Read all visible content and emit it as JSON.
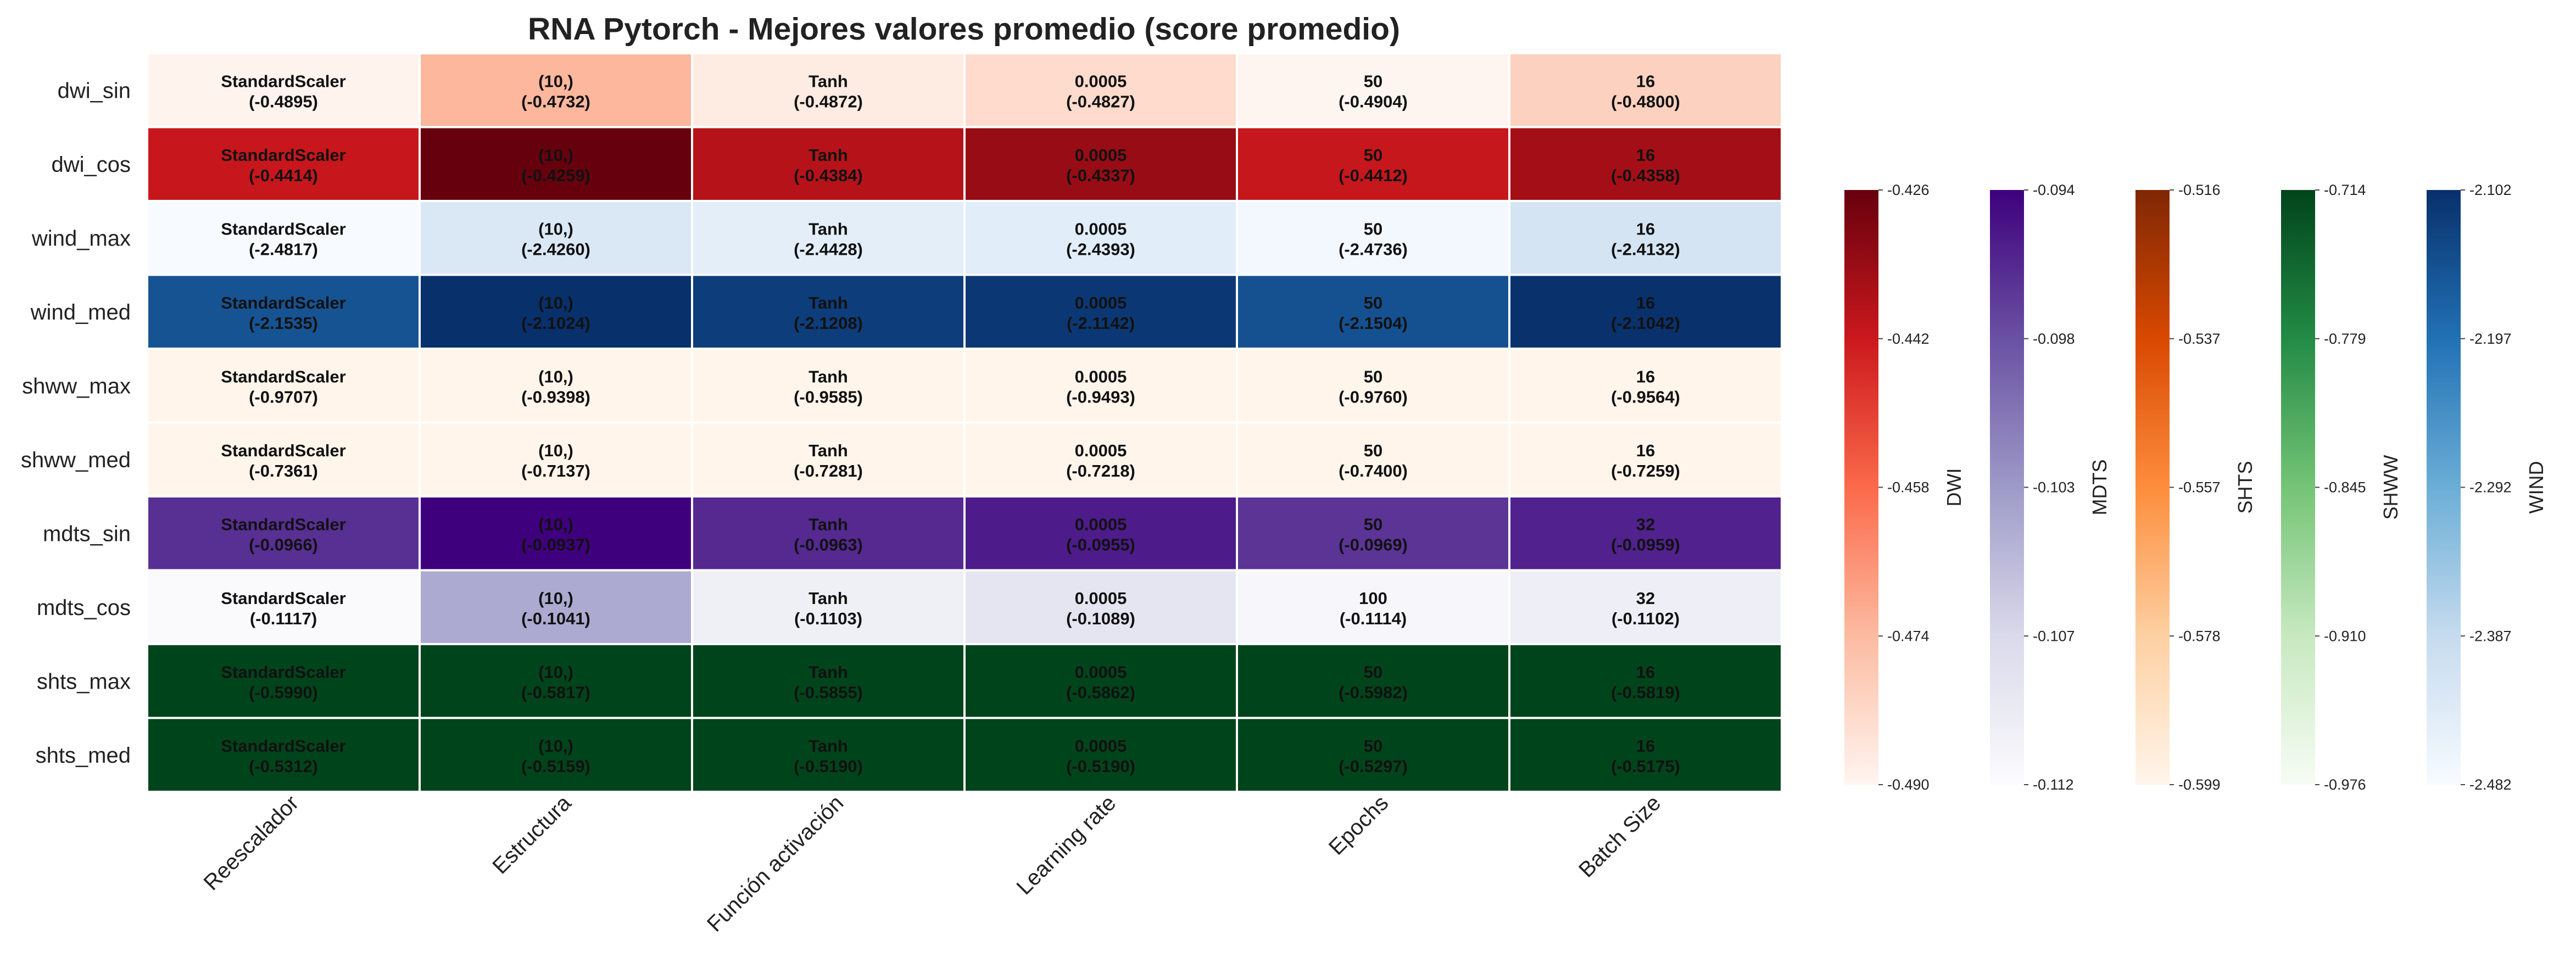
{
  "chart_data": {
    "type": "heatmap",
    "title": "RNA Pytorch - Mejores valores promedio (score promedio)",
    "columns": [
      "Reescalador",
      "Estructura",
      "Función activación",
      "Learning rate",
      "Epochs",
      "Batch Size"
    ],
    "rows": [
      {
        "label": "dwi_sin",
        "group": "DWI",
        "cells": [
          {
            "value": "StandardScaler",
            "score": "(-0.4895)",
            "s": -0.4895
          },
          {
            "value": "(10,)",
            "score": "(-0.4732)",
            "s": -0.4732
          },
          {
            "value": "Tanh",
            "score": "(-0.4872)",
            "s": -0.4872
          },
          {
            "value": "0.0005",
            "score": "(-0.4827)",
            "s": -0.4827
          },
          {
            "value": "50",
            "score": "(-0.4904)",
            "s": -0.4904
          },
          {
            "value": "16",
            "score": "(-0.4800)",
            "s": -0.48
          }
        ]
      },
      {
        "label": "dwi_cos",
        "group": "DWI",
        "cells": [
          {
            "value": "StandardScaler",
            "score": "(-0.4414)",
            "s": -0.4414
          },
          {
            "value": "(10,)",
            "score": "(-0.4259)",
            "s": -0.4259
          },
          {
            "value": "Tanh",
            "score": "(-0.4384)",
            "s": -0.4384
          },
          {
            "value": "0.0005",
            "score": "(-0.4337)",
            "s": -0.4337
          },
          {
            "value": "50",
            "score": "(-0.4412)",
            "s": -0.4412
          },
          {
            "value": "16",
            "score": "(-0.4358)",
            "s": -0.4358
          }
        ]
      },
      {
        "label": "wind_max",
        "group": "WIND",
        "cells": [
          {
            "value": "StandardScaler",
            "score": "(-2.4817)",
            "s": -2.4817
          },
          {
            "value": "(10,)",
            "score": "(-2.4260)",
            "s": -2.426
          },
          {
            "value": "Tanh",
            "score": "(-2.4428)",
            "s": -2.4428
          },
          {
            "value": "0.0005",
            "score": "(-2.4393)",
            "s": -2.4393
          },
          {
            "value": "50",
            "score": "(-2.4736)",
            "s": -2.4736
          },
          {
            "value": "16",
            "score": "(-2.4132)",
            "s": -2.4132
          }
        ]
      },
      {
        "label": "wind_med",
        "group": "WIND",
        "cells": [
          {
            "value": "StandardScaler",
            "score": "(-2.1535)",
            "s": -2.1535
          },
          {
            "value": "(10,)",
            "score": "(-2.1024)",
            "s": -2.1024
          },
          {
            "value": "Tanh",
            "score": "(-2.1208)",
            "s": -2.1208
          },
          {
            "value": "0.0005",
            "score": "(-2.1142)",
            "s": -2.1142
          },
          {
            "value": "50",
            "score": "(-2.1504)",
            "s": -2.1504
          },
          {
            "value": "16",
            "score": "(-2.1042)",
            "s": -2.1042
          }
        ]
      },
      {
        "label": "shww_max",
        "group": "SHTS",
        "cells": [
          {
            "value": "StandardScaler",
            "score": "(-0.9707)",
            "s": -0.9707
          },
          {
            "value": "(10,)",
            "score": "(-0.9398)",
            "s": -0.9398
          },
          {
            "value": "Tanh",
            "score": "(-0.9585)",
            "s": -0.9585
          },
          {
            "value": "0.0005",
            "score": "(-0.9493)",
            "s": -0.9493
          },
          {
            "value": "50",
            "score": "(-0.9760)",
            "s": -0.976
          },
          {
            "value": "16",
            "score": "(-0.9564)",
            "s": -0.9564
          }
        ]
      },
      {
        "label": "shww_med",
        "group": "SHTS",
        "cells": [
          {
            "value": "StandardScaler",
            "score": "(-0.7361)",
            "s": -0.7361
          },
          {
            "value": "(10,)",
            "score": "(-0.7137)",
            "s": -0.7137
          },
          {
            "value": "Tanh",
            "score": "(-0.7281)",
            "s": -0.7281
          },
          {
            "value": "0.0005",
            "score": "(-0.7218)",
            "s": -0.7218
          },
          {
            "value": "50",
            "score": "(-0.7400)",
            "s": -0.74
          },
          {
            "value": "16",
            "score": "(-0.7259)",
            "s": -0.7259
          }
        ]
      },
      {
        "label": "mdts_sin",
        "group": "MDTS",
        "cells": [
          {
            "value": "StandardScaler",
            "score": "(-0.0966)",
            "s": -0.0966
          },
          {
            "value": "(10,)",
            "score": "(-0.0937)",
            "s": -0.0937
          },
          {
            "value": "Tanh",
            "score": "(-0.0963)",
            "s": -0.0963
          },
          {
            "value": "0.0005",
            "score": "(-0.0955)",
            "s": -0.0955
          },
          {
            "value": "50",
            "score": "(-0.0969)",
            "s": -0.0969
          },
          {
            "value": "32",
            "score": "(-0.0959)",
            "s": -0.0959
          }
        ]
      },
      {
        "label": "mdts_cos",
        "group": "MDTS",
        "cells": [
          {
            "value": "StandardScaler",
            "score": "(-0.1117)",
            "s": -0.1117
          },
          {
            "value": "(10,)",
            "score": "(-0.1041)",
            "s": -0.1041
          },
          {
            "value": "Tanh",
            "score": "(-0.1103)",
            "s": -0.1103
          },
          {
            "value": "0.0005",
            "score": "(-0.1089)",
            "s": -0.1089
          },
          {
            "value": "100",
            "score": "(-0.1114)",
            "s": -0.1114
          },
          {
            "value": "32",
            "score": "(-0.1102)",
            "s": -0.1102
          }
        ]
      },
      {
        "label": "shts_max",
        "group": "SHWW",
        "cells": [
          {
            "value": "StandardScaler",
            "score": "(-0.5990)",
            "s": -0.599
          },
          {
            "value": "(10,)",
            "score": "(-0.5817)",
            "s": -0.5817
          },
          {
            "value": "Tanh",
            "score": "(-0.5855)",
            "s": -0.5855
          },
          {
            "value": "0.0005",
            "score": "(-0.5862)",
            "s": -0.5862
          },
          {
            "value": "50",
            "score": "(-0.5982)",
            "s": -0.5982
          },
          {
            "value": "16",
            "score": "(-0.5819)",
            "s": -0.5819
          }
        ]
      },
      {
        "label": "shts_med",
        "group": "SHWW",
        "cells": [
          {
            "value": "StandardScaler",
            "score": "(-0.5312)",
            "s": -0.5312
          },
          {
            "value": "(10,)",
            "score": "(-0.5159)",
            "s": -0.5159
          },
          {
            "value": "Tanh",
            "score": "(-0.5190)",
            "s": -0.519
          },
          {
            "value": "0.0005",
            "score": "(-0.5190)",
            "s": -0.519
          },
          {
            "value": "50",
            "score": "(-0.5297)",
            "s": -0.5297
          },
          {
            "value": "16",
            "score": "(-0.5175)",
            "s": -0.5175
          }
        ]
      }
    ],
    "colorbars": [
      {
        "label": "DWI",
        "min": -0.49,
        "max": -0.426,
        "ticks": [
          "-0.426",
          "-0.442",
          "-0.458",
          "-0.474",
          "-0.490"
        ],
        "stops": [
          "#fff5f0",
          "#fcbba1",
          "#fb6a4a",
          "#cb181d",
          "#67000d"
        ]
      },
      {
        "label": "MDTS",
        "min": -0.112,
        "max": -0.094,
        "ticks": [
          "-0.094",
          "-0.098",
          "-0.103",
          "-0.107",
          "-0.112"
        ],
        "stops": [
          "#fcfbfd",
          "#dadaeb",
          "#9e9ac8",
          "#6a51a3",
          "#3f007d"
        ]
      },
      {
        "label": "SHTS",
        "min": -0.599,
        "max": -0.516,
        "ticks": [
          "-0.516",
          "-0.537",
          "-0.557",
          "-0.578",
          "-0.599"
        ],
        "stops": [
          "#fff5eb",
          "#fdd0a2",
          "#fd8d3c",
          "#d94801",
          "#7f2704"
        ]
      },
      {
        "label": "SHWW",
        "min": -0.976,
        "max": -0.714,
        "ticks": [
          "-0.714",
          "-0.779",
          "-0.845",
          "-0.910",
          "-0.976"
        ],
        "stops": [
          "#f7fcf5",
          "#c7e9c0",
          "#74c476",
          "#238b45",
          "#00441b"
        ]
      },
      {
        "label": "WIND",
        "min": -2.482,
        "max": -2.102,
        "ticks": [
          "-2.102",
          "-2.197",
          "-2.292",
          "-2.387",
          "-2.482"
        ],
        "stops": [
          "#f7fbff",
          "#c6dbef",
          "#6baed6",
          "#2171b5",
          "#08306b"
        ]
      }
    ]
  }
}
